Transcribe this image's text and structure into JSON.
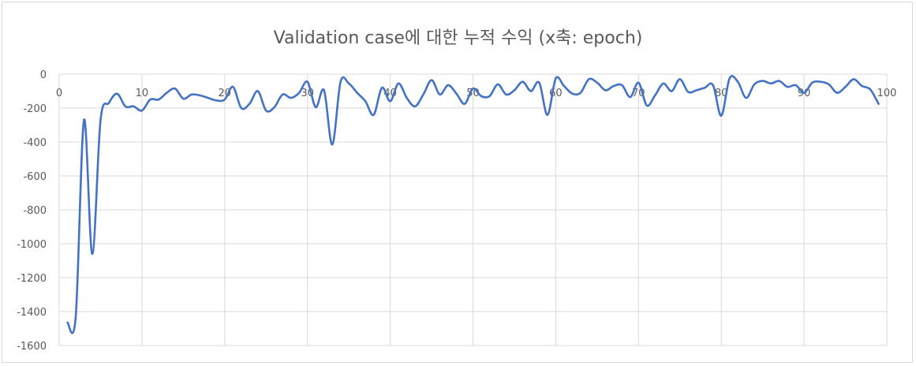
{
  "chart_data": {
    "type": "line",
    "title": "Validation case에 대한 누적 수익 (x축: epoch)",
    "xlabel": "",
    "ylabel": "",
    "xlim": [
      0,
      100
    ],
    "ylim": [
      -1600,
      0
    ],
    "x_ticks": [
      0,
      10,
      20,
      30,
      40,
      50,
      60,
      70,
      80,
      90,
      100
    ],
    "y_ticks": [
      0,
      -200,
      -400,
      -600,
      -800,
      -1000,
      -1200,
      -1400,
      -1600
    ],
    "grid": true,
    "legend": "none",
    "series": [
      {
        "color": "#4472c4",
        "x": [
          1,
          2,
          3,
          4,
          5,
          6,
          7,
          8,
          9,
          10,
          11,
          12,
          13,
          14,
          15,
          16,
          17,
          18,
          19,
          20,
          21,
          22,
          23,
          24,
          25,
          26,
          27,
          28,
          29,
          30,
          31,
          32,
          33,
          34,
          35,
          36,
          37,
          38,
          39,
          40,
          41,
          42,
          43,
          44,
          45,
          46,
          47,
          48,
          49,
          50,
          51,
          52,
          53,
          54,
          55,
          56,
          57,
          58,
          59,
          60,
          61,
          62,
          63,
          64,
          65,
          66,
          67,
          68,
          69,
          70,
          71,
          72,
          73,
          74,
          75,
          76,
          77,
          78,
          79,
          80,
          81,
          82,
          83,
          84,
          85,
          86,
          87,
          88,
          89,
          90,
          91,
          92,
          93,
          94,
          95,
          96,
          97,
          98,
          99
        ],
        "values": [
          -1465,
          -1430,
          -270,
          -1060,
          -270,
          -170,
          -115,
          -190,
          -190,
          -215,
          -150,
          -150,
          -110,
          -85,
          -145,
          -120,
          -125,
          -140,
          -155,
          -150,
          -75,
          -200,
          -175,
          -100,
          -215,
          -195,
          -120,
          -140,
          -110,
          -45,
          -195,
          -95,
          -415,
          -45,
          -55,
          -110,
          -160,
          -240,
          -80,
          -160,
          -55,
          -140,
          -190,
          -120,
          -35,
          -120,
          -65,
          -115,
          -175,
          -85,
          -130,
          -130,
          -60,
          -120,
          -95,
          -45,
          -100,
          -50,
          -240,
          -25,
          -70,
          -115,
          -110,
          -30,
          -50,
          -95,
          -70,
          -65,
          -135,
          -50,
          -185,
          -125,
          -55,
          -100,
          -30,
          -105,
          -95,
          -80,
          -65,
          -245,
          -25,
          -45,
          -140,
          -60,
          -40,
          -55,
          -40,
          -75,
          -65,
          -110,
          -50,
          -45,
          -60,
          -110,
          -75,
          -30,
          -70,
          -90,
          -175
        ]
      }
    ]
  }
}
